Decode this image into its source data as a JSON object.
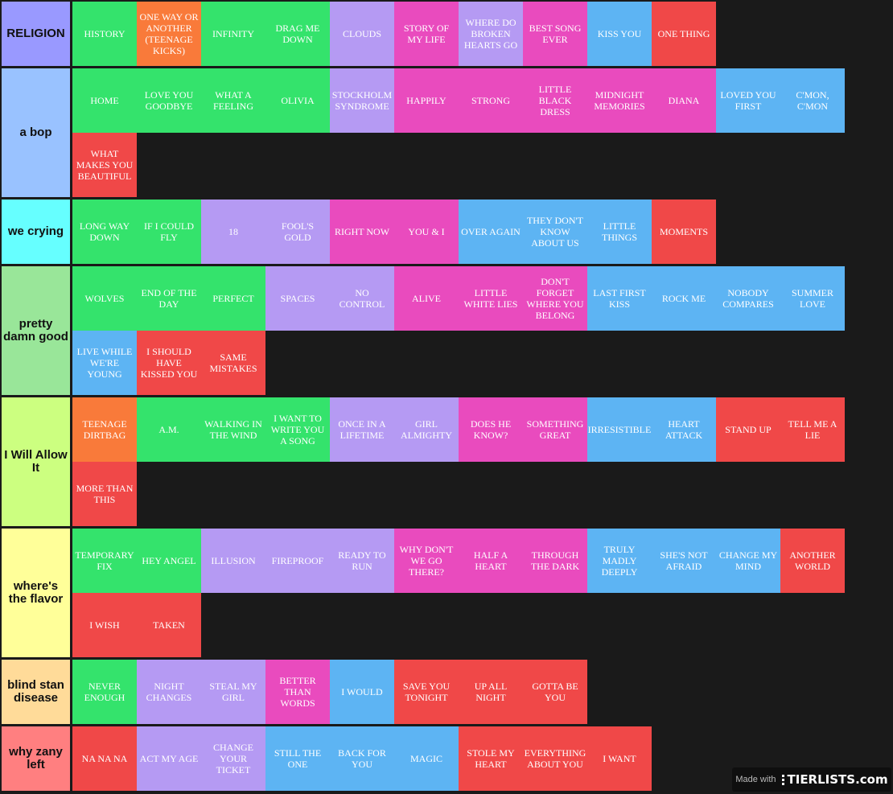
{
  "colors": {
    "green": "#34e36c",
    "orange": "#f97a3a",
    "lavender": "#b59af3",
    "pink": "#e94bbe",
    "blue": "#5db4f3",
    "red": "#f04848",
    "background": "#1a1a1a"
  },
  "tiers": [
    {
      "label": "RELIGION",
      "color": "#9999ff",
      "items": [
        {
          "text": "HISTORY",
          "color": "green"
        },
        {
          "text": "ONE WAY OR ANOTHER (TEENAGE KICKS)",
          "color": "orange"
        },
        {
          "text": "INFINITY",
          "color": "green"
        },
        {
          "text": "DRAG ME DOWN",
          "color": "green"
        },
        {
          "text": "CLOUDS",
          "color": "lavender"
        },
        {
          "text": "STORY OF MY LIFE",
          "color": "pink"
        },
        {
          "text": "WHERE DO BROKEN HEARTS GO",
          "color": "lavender"
        },
        {
          "text": "BEST SONG EVER",
          "color": "pink"
        },
        {
          "text": "KISS YOU",
          "color": "blue"
        },
        {
          "text": "ONE THING",
          "color": "red"
        }
      ]
    },
    {
      "label": "a bop",
      "color": "#99c2ff",
      "items": [
        {
          "text": "HOME",
          "color": "green"
        },
        {
          "text": "LOVE YOU GOODBYE",
          "color": "green"
        },
        {
          "text": "WHAT A FEELING",
          "color": "green"
        },
        {
          "text": "OLIVIA",
          "color": "green"
        },
        {
          "text": "STOCKHOLM SYNDROME",
          "color": "lavender"
        },
        {
          "text": "HAPPILY",
          "color": "pink"
        },
        {
          "text": "STRONG",
          "color": "pink"
        },
        {
          "text": "LITTLE BLACK DRESS",
          "color": "pink"
        },
        {
          "text": "MIDNIGHT MEMORIES",
          "color": "pink"
        },
        {
          "text": "DIANA",
          "color": "pink"
        },
        {
          "text": "LOVED YOU FIRST",
          "color": "blue"
        },
        {
          "text": "C'MON, C'MON",
          "color": "blue"
        },
        {
          "text": "WHAT MAKES YOU BEAUTIFUL",
          "color": "red"
        }
      ]
    },
    {
      "label": "we crying",
      "color": "#66ffff",
      "items": [
        {
          "text": "LONG WAY DOWN",
          "color": "green"
        },
        {
          "text": "IF I COULD FLY",
          "color": "green"
        },
        {
          "text": "18",
          "color": "lavender"
        },
        {
          "text": "FOOL'S GOLD",
          "color": "lavender"
        },
        {
          "text": "RIGHT NOW",
          "color": "pink"
        },
        {
          "text": "YOU & I",
          "color": "pink"
        },
        {
          "text": "OVER AGAIN",
          "color": "blue"
        },
        {
          "text": "THEY DON'T KNOW ABOUT US",
          "color": "blue"
        },
        {
          "text": "LITTLE THINGS",
          "color": "blue"
        },
        {
          "text": "MOMENTS",
          "color": "red"
        }
      ]
    },
    {
      "label": "pretty damn good",
      "color": "#99e699",
      "items": [
        {
          "text": "WOLVES",
          "color": "green"
        },
        {
          "text": "END OF THE DAY",
          "color": "green"
        },
        {
          "text": "PERFECT",
          "color": "green"
        },
        {
          "text": "SPACES",
          "color": "lavender"
        },
        {
          "text": "NO CONTROL",
          "color": "lavender"
        },
        {
          "text": "ALIVE",
          "color": "pink"
        },
        {
          "text": "LITTLE WHITE LIES",
          "color": "pink"
        },
        {
          "text": "DON'T FORGET WHERE YOU BELONG",
          "color": "pink"
        },
        {
          "text": "LAST FIRST KISS",
          "color": "blue"
        },
        {
          "text": "ROCK ME",
          "color": "blue"
        },
        {
          "text": "NOBODY COMPARES",
          "color": "blue"
        },
        {
          "text": "SUMMER LOVE",
          "color": "blue"
        },
        {
          "text": "LIVE WHILE WE'RE YOUNG",
          "color": "blue"
        },
        {
          "text": "I SHOULD HAVE KISSED YOU",
          "color": "red"
        },
        {
          "text": "SAME MISTAKES",
          "color": "red"
        }
      ]
    },
    {
      "label": "I Will Allow It",
      "color": "#ccff80",
      "items": [
        {
          "text": "TEENAGE DIRTBAG",
          "color": "orange"
        },
        {
          "text": "A.M.",
          "color": "green"
        },
        {
          "text": "WALKING IN THE WIND",
          "color": "green"
        },
        {
          "text": "I WANT TO WRITE YOU A SONG",
          "color": "green"
        },
        {
          "text": "ONCE IN A LIFETIME",
          "color": "lavender"
        },
        {
          "text": "GIRL ALMIGHTY",
          "color": "lavender"
        },
        {
          "text": "DOES HE KNOW?",
          "color": "pink"
        },
        {
          "text": "SOMETHING GREAT",
          "color": "pink"
        },
        {
          "text": "IRRESISTIBLE",
          "color": "blue"
        },
        {
          "text": "HEART ATTACK",
          "color": "blue"
        },
        {
          "text": "STAND UP",
          "color": "red"
        },
        {
          "text": "TELL ME A LIE",
          "color": "red"
        },
        {
          "text": "MORE THAN THIS",
          "color": "red"
        }
      ]
    },
    {
      "label": "where's the flavor",
      "color": "#ffff99",
      "items": [
        {
          "text": "TEMPORARY FIX",
          "color": "green"
        },
        {
          "text": "HEY ANGEL",
          "color": "green"
        },
        {
          "text": "ILLUSION",
          "color": "lavender"
        },
        {
          "text": "FIREPROOF",
          "color": "lavender"
        },
        {
          "text": "READY TO RUN",
          "color": "lavender"
        },
        {
          "text": "WHY DON'T WE GO THERE?",
          "color": "pink"
        },
        {
          "text": "HALF A HEART",
          "color": "pink"
        },
        {
          "text": "THROUGH THE DARK",
          "color": "pink"
        },
        {
          "text": "TRULY MADLY DEEPLY",
          "color": "blue"
        },
        {
          "text": "SHE'S NOT AFRAID",
          "color": "blue"
        },
        {
          "text": "CHANGE MY MIND",
          "color": "blue"
        },
        {
          "text": "ANOTHER WORLD",
          "color": "red"
        },
        {
          "text": "I WISH",
          "color": "red"
        },
        {
          "text": "TAKEN",
          "color": "red"
        }
      ]
    },
    {
      "label": "blind stan disease",
      "color": "#ffdb99",
      "items": [
        {
          "text": "NEVER ENOUGH",
          "color": "green"
        },
        {
          "text": "NIGHT CHANGES",
          "color": "lavender"
        },
        {
          "text": "STEAL MY GIRL",
          "color": "lavender"
        },
        {
          "text": "BETTER THAN WORDS",
          "color": "pink"
        },
        {
          "text": "I WOULD",
          "color": "blue"
        },
        {
          "text": "SAVE YOU TONIGHT",
          "color": "red"
        },
        {
          "text": "UP ALL NIGHT",
          "color": "red"
        },
        {
          "text": "GOTTA BE YOU",
          "color": "red"
        }
      ]
    },
    {
      "label": "why zany left",
      "color": "#ff7f80",
      "items": [
        {
          "text": "NA NA NA",
          "color": "red"
        },
        {
          "text": "ACT MY AGE",
          "color": "lavender"
        },
        {
          "text": "CHANGE YOUR TICKET",
          "color": "lavender"
        },
        {
          "text": "STILL THE ONE",
          "color": "blue"
        },
        {
          "text": "BACK FOR YOU",
          "color": "blue"
        },
        {
          "text": "MAGIC",
          "color": "blue"
        },
        {
          "text": "STOLE MY HEART",
          "color": "red"
        },
        {
          "text": "EVERYTHING ABOUT YOU",
          "color": "red"
        },
        {
          "text": "I WANT",
          "color": "red"
        }
      ]
    }
  ],
  "watermark": {
    "prefix": "Made with",
    "brand": "TIERLISTS.com"
  }
}
